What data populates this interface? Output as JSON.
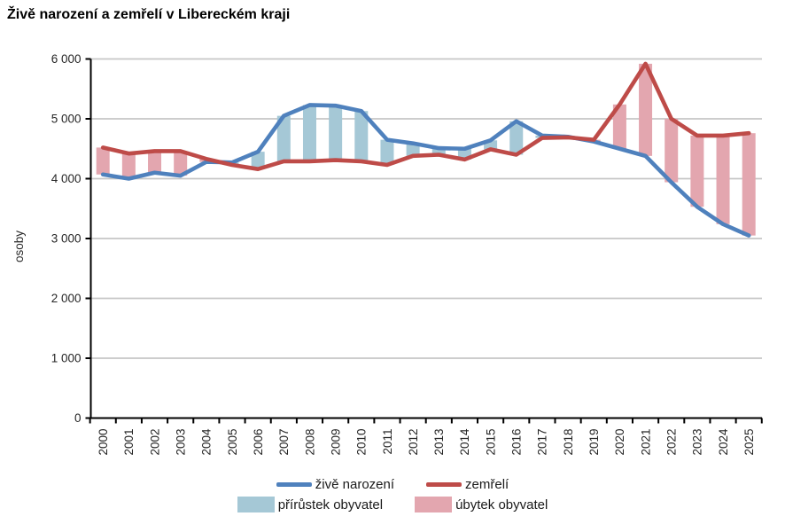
{
  "title": "Živě narození a zemřelí v Libereckém kraji",
  "chart_data": {
    "type": "line",
    "title": "Živě narození a zemřelí v Libereckém kraji",
    "xlabel": "",
    "ylabel": "osoby",
    "ylim": [
      0,
      6000
    ],
    "grid": true,
    "legend_position": "bottom",
    "ytick_values": [
      0,
      1000,
      2000,
      3000,
      4000,
      5000,
      6000
    ],
    "ytick_labels": [
      "0",
      "1 000",
      "2 000",
      "3 000",
      "4 000",
      "5 000",
      "6 000"
    ],
    "categories": [
      "2000",
      "2001",
      "2002",
      "2003",
      "2004",
      "2005",
      "2006",
      "2007",
      "2008",
      "2009",
      "2010",
      "2011",
      "2012",
      "2013",
      "2014",
      "2015",
      "2016",
      "2017",
      "2018",
      "2019",
      "2020",
      "2021",
      "2022",
      "2023",
      "2024",
      "2025"
    ],
    "series": [
      {
        "name": "živě narození",
        "color": "#4f81bd",
        "values": [
          4070,
          4000,
          4100,
          4050,
          4280,
          4270,
          4450,
          5050,
          5230,
          5220,
          5130,
          4650,
          4590,
          4510,
          4500,
          4640,
          4960,
          4720,
          4700,
          4620,
          4500,
          4380,
          3940,
          3530,
          3240,
          3050
        ]
      },
      {
        "name": "zemřelí",
        "color": "#be4b48",
        "values": [
          4520,
          4420,
          4460,
          4460,
          4330,
          4230,
          4160,
          4290,
          4290,
          4310,
          4290,
          4230,
          4380,
          4400,
          4320,
          4490,
          4400,
          4680,
          4690,
          4650,
          5240,
          5920,
          5000,
          4720,
          4720,
          4760
        ]
      }
    ],
    "bands": {
      "increase_label": "přírůstek obyvatel",
      "increase_color": "#a5c8d6",
      "decrease_label": "úbytek obyvatel",
      "decrease_color": "#e3a6af"
    },
    "axis_color": "#000000",
    "grid_color": "#c6c6c6",
    "tick_text_color": "#262626"
  }
}
